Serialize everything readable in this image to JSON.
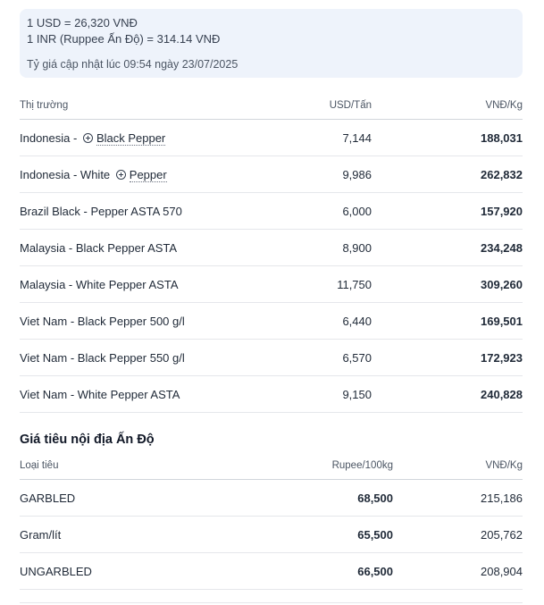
{
  "exchange": {
    "usd_rate": "1 USD = 26,320 VNĐ",
    "inr_rate": "1 INR (Ruppee Ấn Độ) = 314.14 VNĐ",
    "updated": "Tỷ giá cập nhật lúc 09:54 ngày 23/07/2025"
  },
  "market_table": {
    "headers": {
      "market": "Thị trường",
      "usd": "USD/Tấn",
      "vnd": "VNĐ/Kg"
    },
    "rows": [
      {
        "prefix": "Indonesia - ",
        "link": "Black Pepper",
        "usd": "7,144",
        "vnd": "188,031"
      },
      {
        "prefix": "Indonesia - White ",
        "link": "Pepper",
        "usd": "9,986",
        "vnd": "262,832"
      },
      {
        "name": "Brazil Black - Pepper ASTA 570",
        "usd": "6,000",
        "vnd": "157,920"
      },
      {
        "name": "Malaysia - Black Pepper ASTA",
        "usd": "8,900",
        "vnd": "234,248"
      },
      {
        "name": "Malaysia - White Pepper ASTA",
        "usd": "11,750",
        "vnd": "309,260"
      },
      {
        "name": "Viet Nam - Black Pepper 500 g/l",
        "usd": "6,440",
        "vnd": "169,501"
      },
      {
        "name": "Viet Nam - Black Pepper 550 g/l",
        "usd": "6,570",
        "vnd": "172,923"
      },
      {
        "name": "Viet Nam - White Pepper ASTA",
        "usd": "9,150",
        "vnd": "240,828"
      }
    ]
  },
  "india_section": {
    "title": "Giá tiêu nội địa Ấn Độ",
    "headers": {
      "type": "Loại tiêu",
      "rupee": "Rupee/100kg",
      "vnd": "VNĐ/Kg"
    },
    "rows": [
      {
        "name": "GARBLED",
        "rupee": "68,500",
        "vnd": "215,186"
      },
      {
        "name": "Gram/lít",
        "rupee": "65,500",
        "vnd": "205,762"
      },
      {
        "name": "UNGARBLED",
        "rupee": "66,500",
        "vnd": "208,904"
      }
    ]
  },
  "icons": {
    "link_marker": "plus-circle-icon"
  }
}
